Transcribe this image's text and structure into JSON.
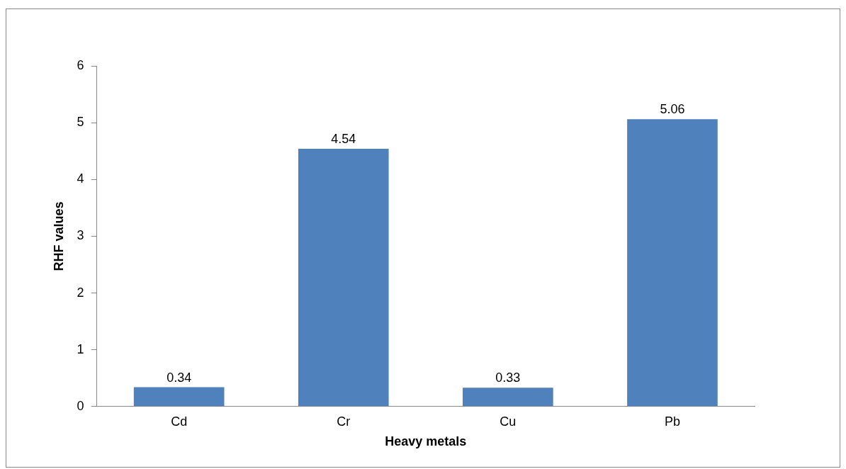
{
  "chart_data": {
    "type": "bar",
    "xlabel": "Heavy metals",
    "ylabel": "RHF values",
    "categories": [
      "Cd",
      "Cr",
      "Cu",
      "Pb"
    ],
    "values": [
      0.34,
      4.54,
      0.33,
      5.06
    ],
    "color": "#4f81bd",
    "ylim": [
      0,
      6
    ],
    "yticks": [
      0,
      1,
      2,
      3,
      4,
      5,
      6
    ],
    "data_labels": true,
    "grid": false,
    "legend": false
  }
}
